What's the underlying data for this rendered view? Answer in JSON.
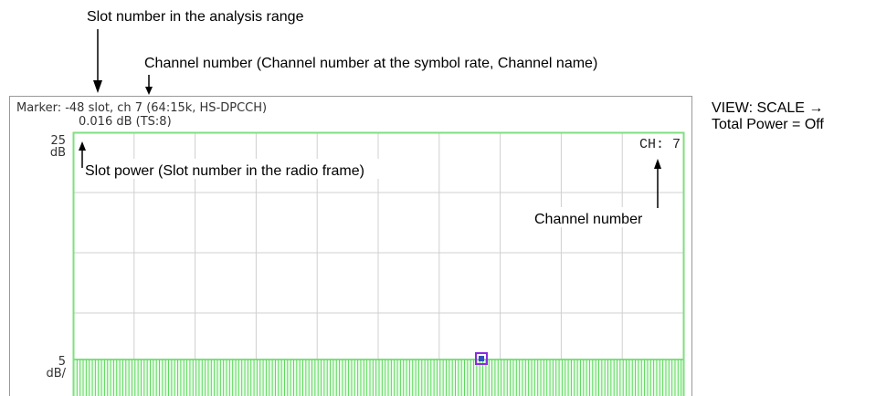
{
  "annotations": {
    "slot_number": "Slot number in the analysis range",
    "channel_number_full": "Channel number (Channel number at the symbol rate, Channel name)",
    "slot_power": "Slot power (Slot number in the radio frame)",
    "channel_number": "Channel number",
    "view_scale": "VIEW: SCALE →",
    "total_power": "Total Power = Off"
  },
  "screen": {
    "marker_line1": "Marker: -48 slot, ch 7 (64:15k, HS-DPCCH)",
    "marker_line2": "0.016 dB (TS:8)",
    "top_value": "25",
    "top_unit": "dB",
    "scale_value": "5",
    "scale_unit": "dB/",
    "channel_label": "CH: 7"
  }
}
